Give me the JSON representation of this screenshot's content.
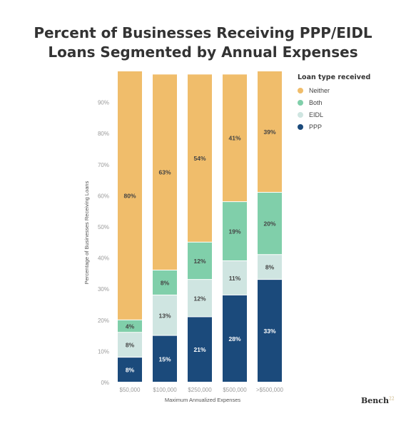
{
  "title_line1": "Percent of Businesses Receiving PPP/EIDL",
  "title_line2": "Loans Segmented by Annual Expenses",
  "brand": "Bench",
  "brand_mark": "22",
  "chart_data": {
    "type": "bar",
    "stacked": true,
    "categories": [
      "$50,000",
      "$100,000",
      "$250,000",
      "$500,000",
      ">$500,000"
    ],
    "series": [
      {
        "name": "PPP",
        "values": [
          8,
          15,
          21,
          28,
          33
        ],
        "labels": [
          "8%",
          "15%",
          "21%",
          "28%",
          "33%"
        ],
        "color": "#1b4a7b",
        "label_color": "#ffffff"
      },
      {
        "name": "EIDL",
        "values": [
          8,
          13,
          12,
          11,
          8
        ],
        "labels": [
          "8%",
          "13%",
          "12%",
          "11%",
          "8%"
        ],
        "color": "#cfe5e1",
        "label_color": "#444444"
      },
      {
        "name": "Both",
        "values": [
          4,
          8,
          12,
          19,
          20
        ],
        "labels": [
          "4%",
          "8%",
          "12%",
          "19%",
          "20%"
        ],
        "color": "#80cfaa",
        "label_color": "#444444"
      },
      {
        "name": "Neither",
        "values": [
          80,
          63,
          54,
          41,
          39
        ],
        "labels": [
          "80%",
          "63%",
          "54%",
          "41%",
          "39%"
        ],
        "color": "#f0bd6b",
        "label_color": "#444444"
      }
    ],
    "xlabel": "Maximum Annualized Expenses",
    "ylabel": "Percentage of Businesses Receiving Loans",
    "yticks": [
      "0%",
      "10%",
      "20%",
      "30%",
      "40%",
      "50%",
      "60%",
      "70%",
      "80%",
      "90%"
    ],
    "ylim": [
      0,
      100
    ],
    "grid": false,
    "legend_title": "Loan type received",
    "legend_order": [
      "Neither",
      "Both",
      "EIDL",
      "PPP"
    ],
    "legend_position": "top-right"
  }
}
